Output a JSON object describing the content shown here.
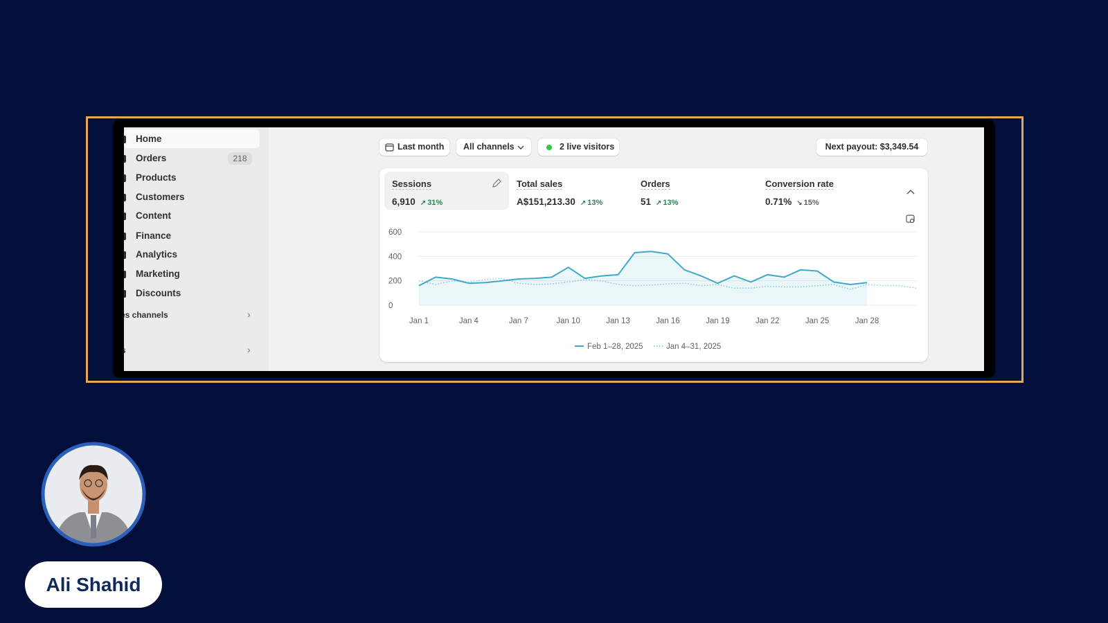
{
  "sidebar": {
    "items": [
      {
        "label": "Home"
      },
      {
        "label": "Orders",
        "badge": "218"
      },
      {
        "label": "Products"
      },
      {
        "label": "Customers"
      },
      {
        "label": "Content"
      },
      {
        "label": "Finance"
      },
      {
        "label": "Analytics"
      },
      {
        "label": "Marketing"
      },
      {
        "label": "Discounts"
      }
    ],
    "sections": [
      "es channels",
      "s"
    ]
  },
  "toolbar": {
    "date": "Last month",
    "channels": "All channels",
    "live": "2 live visitors",
    "payout": "Next payout: $3,349.54"
  },
  "metrics": [
    {
      "label": "Sessions",
      "value": "6,910",
      "change": "31%"
    },
    {
      "label": "Total sales",
      "value": "A$151,213.30",
      "change": "13%"
    },
    {
      "label": "Orders",
      "value": "51",
      "change": "13%"
    },
    {
      "label": "Conversion rate",
      "value": "0.71%",
      "change": "15%"
    }
  ],
  "chart": {
    "type": "line",
    "categories": [
      "Jan 1",
      null,
      null,
      "Jan 4",
      null,
      null,
      "Jan 7",
      null,
      null,
      "Jan 10",
      null,
      null,
      "Jan 13",
      null,
      null,
      "Jan 16",
      null,
      null,
      "Jan 19",
      null,
      null,
      "Jan 22",
      null,
      null,
      "Jan 25",
      null,
      null,
      "Jan 28",
      null,
      null,
      null
    ],
    "series": [
      {
        "name": "Feb 1–28, 2025",
        "color": "#3fa9c9",
        "style": "solid",
        "values": [
          160,
          230,
          215,
          180,
          185,
          200,
          215,
          220,
          230,
          310,
          220,
          240,
          250,
          430,
          440,
          420,
          290,
          240,
          180,
          240,
          190,
          250,
          230,
          290,
          280,
          190,
          170,
          185,
          null,
          null,
          null
        ]
      },
      {
        "name": "Jan 4–31, 2025",
        "color": "#8cc9dc",
        "style": "dotted",
        "values": [
          200,
          170,
          200,
          190,
          210,
          220,
          180,
          170,
          175,
          190,
          210,
          200,
          170,
          160,
          165,
          175,
          180,
          160,
          170,
          140,
          140,
          155,
          150,
          150,
          160,
          170,
          130,
          170,
          160,
          160,
          140
        ]
      }
    ],
    "ylim": [
      0,
      600
    ],
    "yticks": [
      0,
      200,
      400,
      600
    ],
    "grid": true
  },
  "profile": {
    "name": "Ali Shahid"
  }
}
